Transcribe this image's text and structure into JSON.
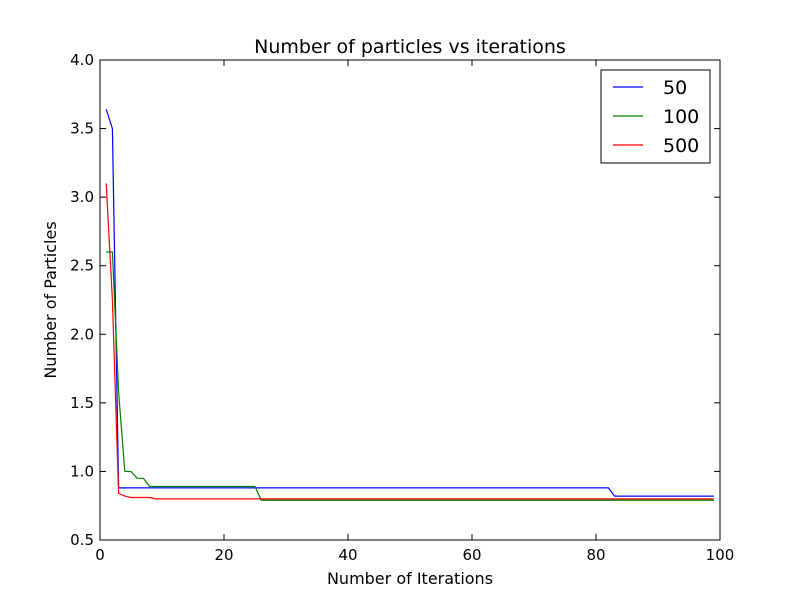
{
  "chart_data": {
    "type": "line",
    "title": "Number of particles vs iterations",
    "xlabel": "Number of Iterations",
    "ylabel": "Number of Particles",
    "xlim": [
      0,
      100
    ],
    "ylim": [
      0.5,
      4.0
    ],
    "xticks": [
      0,
      20,
      40,
      60,
      80,
      100
    ],
    "xtick_labels": [
      "0",
      "20",
      "40",
      "60",
      "80",
      "100"
    ],
    "yticks": [
      0.5,
      1.0,
      1.5,
      2.0,
      2.5,
      3.0,
      3.5,
      4.0
    ],
    "ytick_labels": [
      "0.5",
      "1.0",
      "1.5",
      "2.0",
      "2.5",
      "3.0",
      "3.5",
      "4.0"
    ],
    "grid": false,
    "legend_position": "top-right",
    "series": [
      {
        "name": "50",
        "color": "#0000ff",
        "x": [
          1,
          2,
          3,
          25,
          26,
          82,
          83,
          99
        ],
        "y": [
          3.64,
          3.5,
          0.88,
          0.88,
          0.88,
          0.88,
          0.82,
          0.82
        ]
      },
      {
        "name": "100",
        "color": "#008000",
        "x": [
          1,
          2,
          3,
          4,
          5,
          6,
          7,
          8,
          25,
          26,
          99
        ],
        "y": [
          2.6,
          2.6,
          1.58,
          1.0,
          1.0,
          0.95,
          0.95,
          0.89,
          0.89,
          0.79,
          0.79
        ]
      },
      {
        "name": "500",
        "color": "#ff0000",
        "x": [
          1,
          2,
          3,
          4,
          5,
          6,
          7,
          8,
          9,
          99
        ],
        "y": [
          3.1,
          2.25,
          0.84,
          0.82,
          0.81,
          0.81,
          0.81,
          0.81,
          0.8,
          0.8
        ]
      }
    ]
  }
}
